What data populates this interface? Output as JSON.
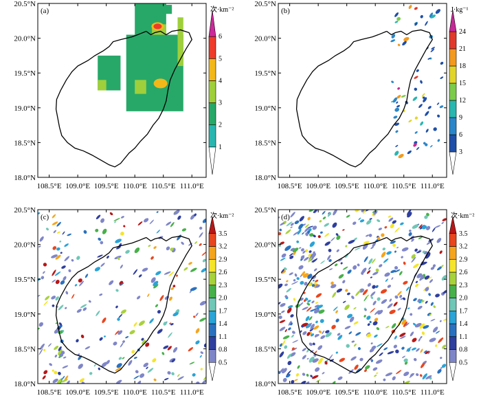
{
  "figure": {
    "panels": [
      {
        "id": "a",
        "label": "(a)",
        "unit": "次·km⁻²",
        "colorbar": {
          "ticks": [
            "1",
            "2",
            "3",
            "4",
            "5",
            "6"
          ],
          "colors": [
            "#ffffff",
            "#2ab6b0",
            "#27a868",
            "#9fcf3b",
            "#f2b81a",
            "#ee3b2a",
            "#cc2a9a"
          ]
        },
        "field": "lightning_density_smooth"
      },
      {
        "id": "b",
        "label": "(b)",
        "unit": "J·kg⁻¹",
        "colorbar": {
          "ticks": [
            "3",
            "6",
            "9",
            "12",
            "15",
            "18",
            "21",
            "24"
          ],
          "colors": [
            "#ffffff",
            "#1f4fa8",
            "#2a86c8",
            "#2ab6b0",
            "#7ccb4a",
            "#e2d52a",
            "#f29a1e",
            "#e0392b",
            "#c42a95"
          ]
        },
        "field": "cape"
      },
      {
        "id": "c",
        "label": "(c)",
        "unit": "次·km⁻²",
        "colorbar": {
          "ticks": [
            "0.5",
            "0.8",
            "1.1",
            "1.4",
            "1.7",
            "2.0",
            "2.3",
            "2.6",
            "2.9",
            "3.2",
            "3.5"
          ],
          "colors": [
            "#ffffff",
            "#7f86c8",
            "#2f3f9e",
            "#2a72c0",
            "#2aa3d6",
            "#6fc7b6",
            "#48b04a",
            "#a8d23a",
            "#f5e52a",
            "#f4a51e",
            "#e8461f",
            "#b81717"
          ]
        },
        "field": "lightning_density_sim"
      },
      {
        "id": "d",
        "label": "(d)",
        "unit": "次·km⁻²",
        "colorbar": {
          "ticks": [
            "0.5",
            "0.8",
            "1.1",
            "1.4",
            "1.7",
            "2.0",
            "2.3",
            "2.6",
            "2.9",
            "3.2",
            "3.5"
          ],
          "colors": [
            "#ffffff",
            "#7f86c8",
            "#2f3f9e",
            "#2a72c0",
            "#2aa3d6",
            "#6fc7b6",
            "#48b04a",
            "#a8d23a",
            "#f5e52a",
            "#f4a51e",
            "#e8461f",
            "#b81717"
          ]
        },
        "field": "lightning_density_sim2"
      }
    ],
    "x_ticks": [
      "108.5°E",
      "109.0°E",
      "109.5°E",
      "110.0°E",
      "110.5°E",
      "111.0°E"
    ],
    "y_ticks": [
      "18.0°N",
      "18.5°N",
      "19.0°N",
      "19.5°N",
      "20.0°N",
      "20.5°N"
    ]
  },
  "chart_data": [
    {
      "type": "heatmap",
      "panel": "(a)",
      "x_range": [
        108.3,
        111.25
      ],
      "y_range": [
        18.0,
        20.5
      ],
      "x_ticks": [
        108.5,
        109.0,
        109.5,
        110.0,
        110.5,
        111.0
      ],
      "y_ticks": [
        18.0,
        18.5,
        19.0,
        19.5,
        20.0,
        20.5
      ],
      "colorbar_unit": "次·km⁻²",
      "colorbar_levels": [
        1,
        2,
        3,
        4,
        5,
        6
      ],
      "regions": [
        {
          "lon": 110.35,
          "lat": 20.28,
          "value": 3.3
        },
        {
          "lon": 110.6,
          "lat": 19.3,
          "value": 3.2
        },
        {
          "lon": 109.55,
          "lat": 19.5,
          "value": 3.0
        },
        {
          "lon": 110.4,
          "lat": 20.15,
          "value": 5.5
        },
        {
          "lon": 110.45,
          "lat": 19.35,
          "value": 4.2
        }
      ]
    },
    {
      "type": "heatmap",
      "panel": "(b)",
      "x_range": [
        108.3,
        111.25
      ],
      "y_range": [
        18.0,
        20.5
      ],
      "colorbar_unit": "J·kg⁻¹",
      "colorbar_levels": [
        3,
        6,
        9,
        12,
        15,
        18,
        21,
        24
      ]
    },
    {
      "type": "heatmap",
      "panel": "(c)",
      "x_range": [
        108.3,
        111.25
      ],
      "y_range": [
        18.0,
        20.5
      ],
      "colorbar_unit": "次·km⁻²",
      "colorbar_levels": [
        0.5,
        0.8,
        1.1,
        1.4,
        1.7,
        2.0,
        2.3,
        2.6,
        2.9,
        3.2,
        3.5
      ]
    },
    {
      "type": "heatmap",
      "panel": "(d)",
      "x_range": [
        108.3,
        111.25
      ],
      "y_range": [
        18.0,
        20.5
      ],
      "colorbar_unit": "次·km⁻²",
      "colorbar_levels": [
        0.5,
        0.8,
        1.1,
        1.4,
        1.7,
        2.0,
        2.3,
        2.6,
        2.9,
        3.2,
        3.5
      ]
    }
  ]
}
